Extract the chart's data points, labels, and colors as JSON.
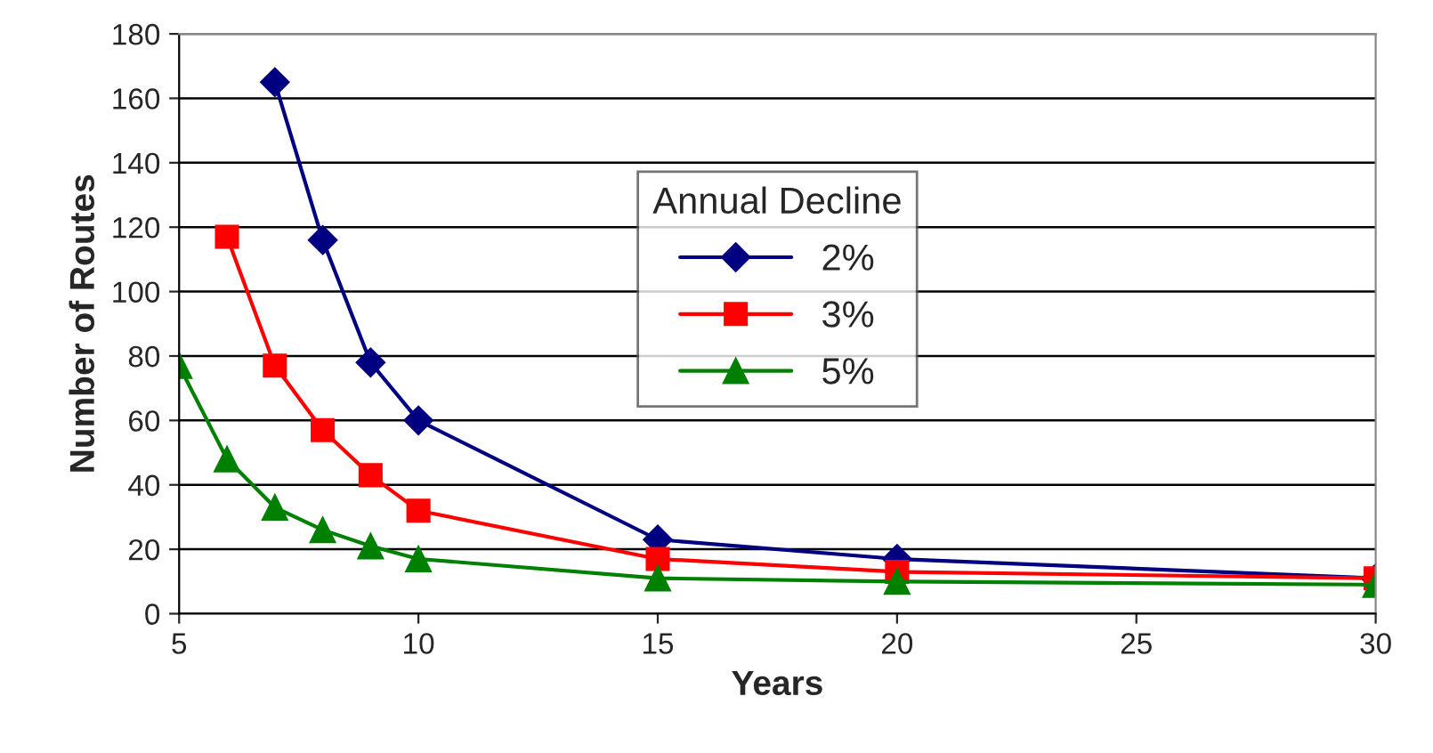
{
  "chart_data": {
    "type": "line",
    "xlabel": "Years",
    "ylabel": "Number of Routes",
    "legend_title": "Annual Decline",
    "legend": "center",
    "grid": "y",
    "xlim": [
      5,
      30
    ],
    "xticks": [
      5,
      10,
      15,
      20,
      25,
      30
    ],
    "ylim": [
      0,
      180
    ],
    "yticks": [
      0,
      20,
      40,
      60,
      80,
      100,
      120,
      140,
      160,
      180
    ],
    "series": [
      {
        "name": "2%",
        "color": "#000080",
        "marker": "diamond",
        "x": [
          7,
          8,
          9,
          10,
          15,
          20,
          30
        ],
        "values": [
          165,
          116,
          78,
          60,
          23,
          17,
          11
        ]
      },
      {
        "name": "3%",
        "color": "#ff0000",
        "marker": "square",
        "x": [
          6,
          7,
          8,
          9,
          10,
          15,
          20,
          30
        ],
        "values": [
          117,
          77,
          57,
          43,
          32,
          17,
          13,
          11
        ]
      },
      {
        "name": "5%",
        "color": "#008000",
        "marker": "triangle",
        "x": [
          5,
          6,
          7,
          8,
          9,
          10,
          15,
          20,
          30
        ],
        "values": [
          77,
          48,
          33,
          26,
          21,
          17,
          11,
          10,
          9
        ]
      }
    ]
  }
}
